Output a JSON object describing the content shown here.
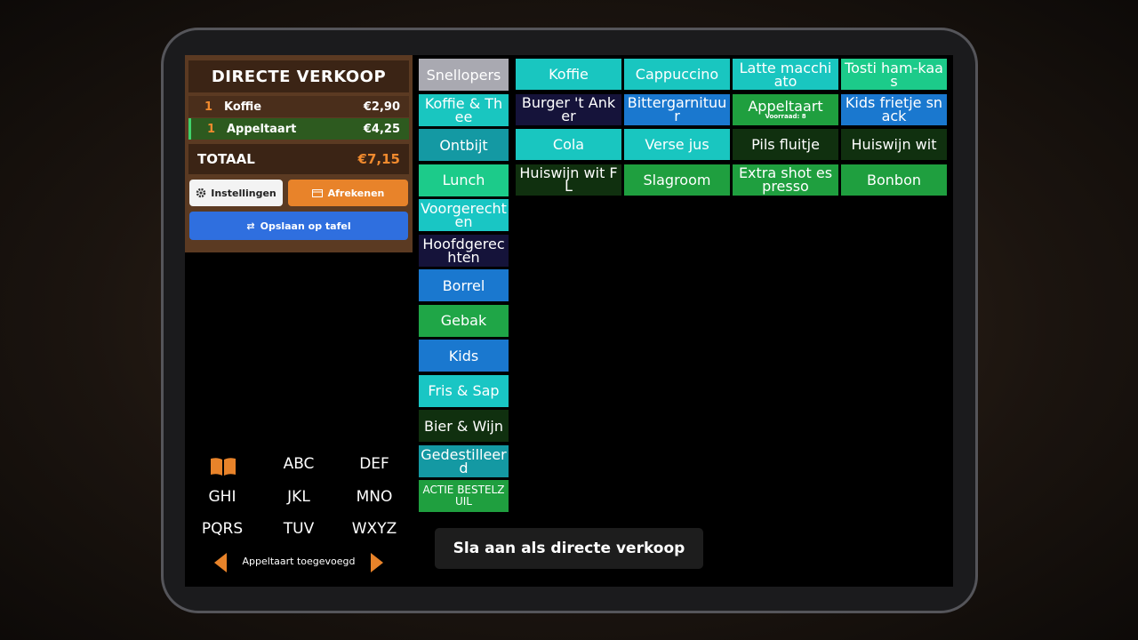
{
  "order_panel": {
    "title": "DIRECTE VERKOOP",
    "lines": [
      {
        "qty": 1,
        "name": "Koffie",
        "price": "€2,90"
      },
      {
        "qty": 1,
        "name": "Appeltaart",
        "price": "€4,25"
      }
    ],
    "total_label": "TOTAAL",
    "total": "€7,15",
    "buttons": {
      "settings": "Instellingen",
      "checkout": "Afrekenen",
      "save": "Opslaan op tafel"
    }
  },
  "keypad": {
    "keys": [
      "ABC",
      "DEF",
      "GHI",
      "JKL",
      "MNO",
      "PQRS",
      "TUV",
      "WXYZ"
    ],
    "status": "Appeltaart toegevoegd"
  },
  "categories": [
    {
      "label": "Snellopers",
      "color": "#a9a9b1"
    },
    {
      "label": "Koffie & Thee",
      "color": "#19c6c0"
    },
    {
      "label": "Ontbijt",
      "color": "#1499a3"
    },
    {
      "label": "Lunch",
      "color": "#1ccb8a"
    },
    {
      "label": "Voorgerechten",
      "color": "#19c6c4"
    },
    {
      "label": "Hoofdgerechten",
      "color": "#15133a"
    },
    {
      "label": "Borrel",
      "color": "#1a78cf"
    },
    {
      "label": "Gebak",
      "color": "#1fa647"
    },
    {
      "label": "Kids",
      "color": "#1a78cf"
    },
    {
      "label": "Fris & Sap",
      "color": "#19c6c4"
    },
    {
      "label": "Bier & Wijn",
      "color": "#10300f"
    },
    {
      "label": "Gedestilleerd",
      "color": "#1499a3"
    },
    {
      "label": "ACTIE BESTELZUIL",
      "color": "#1f9f3f"
    }
  ],
  "products": [
    {
      "label": "Koffie",
      "color": "#19c6c0"
    },
    {
      "label": "Cappuccino",
      "color": "#19c6c0"
    },
    {
      "label": "Latte macchiato",
      "color": "#19c6c0"
    },
    {
      "label": "Tosti ham-kaas",
      "color": "#1ccb8a"
    },
    {
      "label": "Burger 't Anker",
      "color": "#15133a"
    },
    {
      "label": "Bittergarnituur",
      "color": "#1a78cf"
    },
    {
      "label": "Appeltaart",
      "note": "Voorraad: 8",
      "color": "#1f9f3f"
    },
    {
      "label": "Kids frietje snack",
      "color": "#1a78cf"
    },
    {
      "label": "Cola",
      "color": "#19c6c0"
    },
    {
      "label": "Verse jus",
      "color": "#19c6c0"
    },
    {
      "label": "Pils fluitje",
      "color": "#10300f"
    },
    {
      "label": "Huiswijn wit",
      "color": "#10300f"
    },
    {
      "label": "Huiswijn wit FL",
      "color": "#10300f"
    },
    {
      "label": "Slagroom",
      "color": "#1f9f3f"
    },
    {
      "label": "Extra shot espresso",
      "color": "#1f9f3f"
    },
    {
      "label": "Bonbon",
      "color": "#1f9f3f"
    }
  ],
  "action_button": "Sla aan als directe verkoop"
}
